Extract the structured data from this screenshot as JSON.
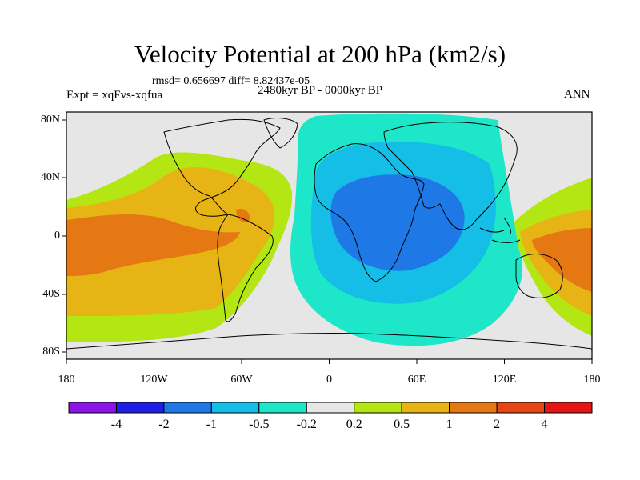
{
  "map": {
    "title": "Velocity Potential at 200 hPa (km2/s)",
    "stats_line": "rmsd= 0.656697 diff= 8.82437e-05",
    "experiment": "Expt = xqFvs-xqfua",
    "period": "2480kyr BP - 0000kyr BP",
    "season": "ANN",
    "lat_labels": [
      "80N",
      "40N",
      "0",
      "40S",
      "80S"
    ],
    "lon_labels": [
      "180",
      "120W",
      "60W",
      "0",
      "60E",
      "120E",
      "180"
    ]
  },
  "colorbar": {
    "colors": [
      "#8c14e6",
      "#1e1ee6",
      "#1e78e6",
      "#14bee6",
      "#1ee6c8",
      "#e6e6e6",
      "#b4e614",
      "#e6b414",
      "#e67814",
      "#e64614",
      "#e61414"
    ],
    "labels": [
      "-4",
      "-2",
      "-1",
      "-0.5",
      "-0.2",
      "0.2",
      "0.5",
      "1",
      "2",
      "4"
    ]
  }
}
